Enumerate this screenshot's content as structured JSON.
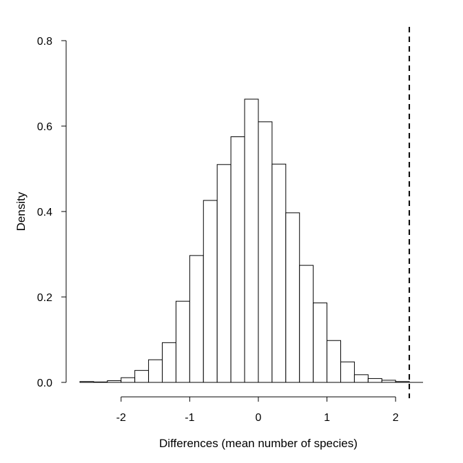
{
  "chart_data": {
    "type": "bar",
    "subtype": "histogram",
    "title": "",
    "xlabel": "Differences (mean number of species)",
    "ylabel": "Density",
    "xlim": [
      -2.6,
      2.4
    ],
    "ylim": [
      0,
      0.8
    ],
    "bin_edges": [
      -2.6,
      -2.4,
      -2.2,
      -2.0,
      -1.8,
      -1.6,
      -1.4,
      -1.2,
      -1.0,
      -0.8,
      -0.6,
      -0.4,
      -0.2,
      0.0,
      0.2,
      0.4,
      0.6,
      0.8,
      1.0,
      1.2,
      1.4,
      1.6,
      1.8,
      2.0,
      2.2
    ],
    "values": [
      0.002,
      0.001,
      0.004,
      0.011,
      0.028,
      0.053,
      0.093,
      0.19,
      0.297,
      0.426,
      0.51,
      0.575,
      0.663,
      0.61,
      0.511,
      0.397,
      0.274,
      0.186,
      0.098,
      0.048,
      0.018,
      0.009,
      0.005,
      0.002
    ],
    "reference_line": {
      "x": 2.2,
      "style": "dashed"
    },
    "x_ticks": [
      -2,
      -1,
      0,
      1,
      2
    ],
    "x_tick_labels": [
      "-2",
      "-1",
      "0",
      "1",
      "2"
    ],
    "y_ticks": [
      0.0,
      0.2,
      0.4,
      0.6,
      0.8
    ],
    "y_tick_labels": [
      "0.0",
      "0.2",
      "0.4",
      "0.6",
      "0.8"
    ],
    "grid": false,
    "colors": {
      "bar_fill": "#ffffff",
      "bar_stroke": "#000000",
      "axis": "#000000"
    }
  }
}
